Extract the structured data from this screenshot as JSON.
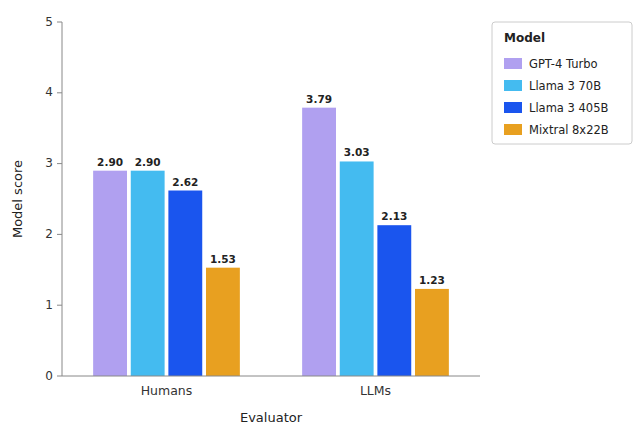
{
  "chart_data": {
    "type": "bar",
    "xlabel": "Evaluator",
    "ylabel": "Model score",
    "legend_title": "Model",
    "categories": [
      "Humans",
      "LLMs"
    ],
    "series": [
      {
        "name": "GPT-4 Turbo",
        "color": "#b0a0f0",
        "values": [
          2.9,
          3.79
        ],
        "value_labels": [
          "2.90",
          "3.79"
        ]
      },
      {
        "name": "Llama 3 70B",
        "color": "#44bbf0",
        "values": [
          2.9,
          3.03
        ],
        "value_labels": [
          "2.90",
          "3.03"
        ]
      },
      {
        "name": "Llama 3 405B",
        "color": "#1a55ee",
        "values": [
          2.62,
          2.13
        ],
        "value_labels": [
          "2.62",
          "2.13"
        ]
      },
      {
        "name": "Mixtral 8x22B",
        "color": "#e8a020",
        "values": [
          1.53,
          1.23
        ],
        "value_labels": [
          "1.53",
          "1.23"
        ]
      }
    ],
    "ylim": [
      0,
      5
    ],
    "yticks": [
      0,
      1,
      2,
      3,
      4,
      5
    ],
    "grid": false,
    "legend": "upper right",
    "data_labels": true
  }
}
